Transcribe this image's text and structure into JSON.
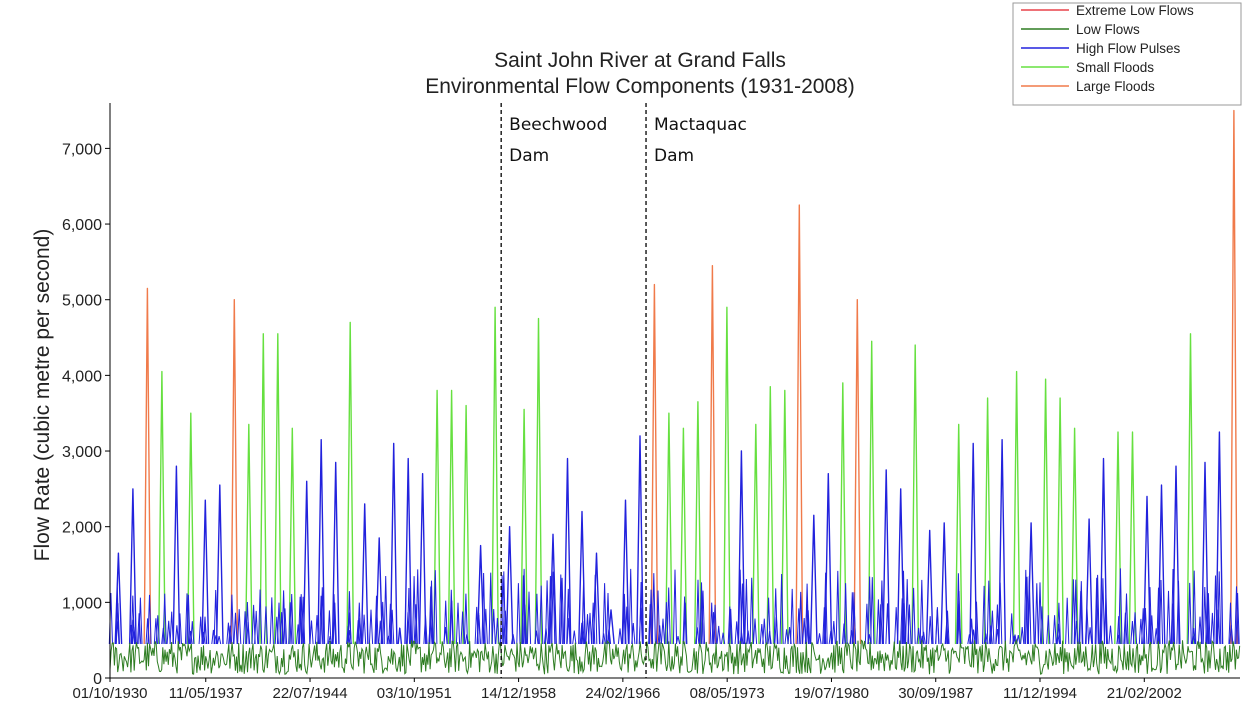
{
  "chart_data": {
    "type": "line",
    "title": [
      "Saint John River at Grand Falls",
      "Environmental Flow Components (1931-2008)"
    ],
    "xlabel": "",
    "ylabel": "Flow Rate (cubic metre per second)",
    "ylim": [
      0,
      7600
    ],
    "y_ticks": [
      0,
      1000,
      2000,
      3000,
      4000,
      5000,
      6000,
      7000
    ],
    "y_tick_labels": [
      "0",
      "1,000",
      "2,000",
      "3,000",
      "4,000",
      "5,000",
      "6,000",
      "7,000"
    ],
    "x_range": [
      "1930-10-01",
      "2008-09-30"
    ],
    "x_ticks": [
      {
        "label": "01/10/1930",
        "date": "1930-10-01"
      },
      {
        "label": "11/05/1937",
        "date": "1937-05-11"
      },
      {
        "label": "22/07/1944",
        "date": "1944-07-22"
      },
      {
        "label": "03/10/1951",
        "date": "1951-10-03"
      },
      {
        "label": "14/12/1958",
        "date": "1958-12-14"
      },
      {
        "label": "24/02/1966",
        "date": "1966-02-24"
      },
      {
        "label": "08/05/1973",
        "date": "1973-05-08"
      },
      {
        "label": "19/07/1980",
        "date": "1980-07-19"
      },
      {
        "label": "30/09/1987",
        "date": "1987-09-30"
      },
      {
        "label": "11/12/1994",
        "date": "1994-12-11"
      },
      {
        "label": "21/02/2002",
        "date": "2002-02-21"
      }
    ],
    "grid": false,
    "legend_position": "top-right",
    "series": [
      {
        "name": "Extreme Low Flows",
        "color": "#e8424a"
      },
      {
        "name": "Low Flows",
        "color": "#2e7d22"
      },
      {
        "name": "High Flow Pulses",
        "color": "#2222dd"
      },
      {
        "name": "Small Floods",
        "color": "#66e040"
      },
      {
        "name": "Large Floods",
        "color": "#f07a4a"
      }
    ],
    "annual_peaks": [
      {
        "year": 1931,
        "flow": 1650,
        "class": "High Flow Pulses"
      },
      {
        "year": 1932,
        "flow": 2500,
        "class": "High Flow Pulses"
      },
      {
        "year": 1933,
        "flow": 5150,
        "class": "Large Floods"
      },
      {
        "year": 1934,
        "flow": 4050,
        "class": "Small Floods"
      },
      {
        "year": 1935,
        "flow": 2800,
        "class": "High Flow Pulses"
      },
      {
        "year": 1936,
        "flow": 3500,
        "class": "Small Floods"
      },
      {
        "year": 1937,
        "flow": 2350,
        "class": "High Flow Pulses"
      },
      {
        "year": 1938,
        "flow": 2550,
        "class": "High Flow Pulses"
      },
      {
        "year": 1939,
        "flow": 5000,
        "class": "Large Floods"
      },
      {
        "year": 1940,
        "flow": 3350,
        "class": "Small Floods"
      },
      {
        "year": 1941,
        "flow": 4550,
        "class": "Small Floods"
      },
      {
        "year": 1942,
        "flow": 4550,
        "class": "Small Floods"
      },
      {
        "year": 1943,
        "flow": 3300,
        "class": "Small Floods"
      },
      {
        "year": 1944,
        "flow": 2600,
        "class": "High Flow Pulses"
      },
      {
        "year": 1945,
        "flow": 3150,
        "class": "High Flow Pulses"
      },
      {
        "year": 1946,
        "flow": 2850,
        "class": "High Flow Pulses"
      },
      {
        "year": 1947,
        "flow": 4700,
        "class": "Small Floods"
      },
      {
        "year": 1948,
        "flow": 2300,
        "class": "High Flow Pulses"
      },
      {
        "year": 1949,
        "flow": 1850,
        "class": "High Flow Pulses"
      },
      {
        "year": 1950,
        "flow": 3100,
        "class": "High Flow Pulses"
      },
      {
        "year": 1951,
        "flow": 2900,
        "class": "High Flow Pulses"
      },
      {
        "year": 1952,
        "flow": 2700,
        "class": "High Flow Pulses"
      },
      {
        "year": 1953,
        "flow": 3800,
        "class": "Small Floods"
      },
      {
        "year": 1954,
        "flow": 3800,
        "class": "Small Floods"
      },
      {
        "year": 1955,
        "flow": 3600,
        "class": "Small Floods"
      },
      {
        "year": 1956,
        "flow": 1750,
        "class": "High Flow Pulses"
      },
      {
        "year": 1957,
        "flow": 4900,
        "class": "Small Floods"
      },
      {
        "year": 1958,
        "flow": 2000,
        "class": "High Flow Pulses"
      },
      {
        "year": 1959,
        "flow": 3550,
        "class": "Small Floods"
      },
      {
        "year": 1960,
        "flow": 4750,
        "class": "Small Floods"
      },
      {
        "year": 1961,
        "flow": 1900,
        "class": "High Flow Pulses"
      },
      {
        "year": 1962,
        "flow": 2900,
        "class": "High Flow Pulses"
      },
      {
        "year": 1963,
        "flow": 2200,
        "class": "High Flow Pulses"
      },
      {
        "year": 1964,
        "flow": 1650,
        "class": "High Flow Pulses"
      },
      {
        "year": 1965,
        "flow": 900,
        "class": "High Flow Pulses"
      },
      {
        "year": 1966,
        "flow": 2350,
        "class": "High Flow Pulses"
      },
      {
        "year": 1967,
        "flow": 3200,
        "class": "High Flow Pulses"
      },
      {
        "year": 1968,
        "flow": 5200,
        "class": "Large Floods"
      },
      {
        "year": 1969,
        "flow": 3500,
        "class": "Small Floods"
      },
      {
        "year": 1970,
        "flow": 3300,
        "class": "Small Floods"
      },
      {
        "year": 1971,
        "flow": 3650,
        "class": "Small Floods"
      },
      {
        "year": 1972,
        "flow": 5450,
        "class": "Large Floods"
      },
      {
        "year": 1973,
        "flow": 4900,
        "class": "Small Floods"
      },
      {
        "year": 1974,
        "flow": 3000,
        "class": "High Flow Pulses"
      },
      {
        "year": 1975,
        "flow": 3350,
        "class": "Small Floods"
      },
      {
        "year": 1976,
        "flow": 3850,
        "class": "Small Floods"
      },
      {
        "year": 1977,
        "flow": 3800,
        "class": "Small Floods"
      },
      {
        "year": 1978,
        "flow": 6250,
        "class": "Large Floods"
      },
      {
        "year": 1979,
        "flow": 2150,
        "class": "High Flow Pulses"
      },
      {
        "year": 1980,
        "flow": 2700,
        "class": "High Flow Pulses"
      },
      {
        "year": 1981,
        "flow": 3900,
        "class": "Small Floods"
      },
      {
        "year": 1982,
        "flow": 5000,
        "class": "Large Floods"
      },
      {
        "year": 1983,
        "flow": 4450,
        "class": "Small Floods"
      },
      {
        "year": 1984,
        "flow": 2750,
        "class": "High Flow Pulses"
      },
      {
        "year": 1985,
        "flow": 2500,
        "class": "High Flow Pulses"
      },
      {
        "year": 1986,
        "flow": 4400,
        "class": "Small Floods"
      },
      {
        "year": 1987,
        "flow": 1950,
        "class": "High Flow Pulses"
      },
      {
        "year": 1988,
        "flow": 2050,
        "class": "High Flow Pulses"
      },
      {
        "year": 1989,
        "flow": 3350,
        "class": "Small Floods"
      },
      {
        "year": 1990,
        "flow": 3100,
        "class": "High Flow Pulses"
      },
      {
        "year": 1991,
        "flow": 3700,
        "class": "Small Floods"
      },
      {
        "year": 1992,
        "flow": 3150,
        "class": "High Flow Pulses"
      },
      {
        "year": 1993,
        "flow": 4050,
        "class": "Small Floods"
      },
      {
        "year": 1994,
        "flow": 2050,
        "class": "High Flow Pulses"
      },
      {
        "year": 1995,
        "flow": 3950,
        "class": "Small Floods"
      },
      {
        "year": 1996,
        "flow": 3700,
        "class": "Small Floods"
      },
      {
        "year": 1997,
        "flow": 3300,
        "class": "Small Floods"
      },
      {
        "year": 1998,
        "flow": 2100,
        "class": "High Flow Pulses"
      },
      {
        "year": 1999,
        "flow": 2900,
        "class": "High Flow Pulses"
      },
      {
        "year": 2000,
        "flow": 3250,
        "class": "Small Floods"
      },
      {
        "year": 2001,
        "flow": 3250,
        "class": "Small Floods"
      },
      {
        "year": 2002,
        "flow": 2400,
        "class": "High Flow Pulses"
      },
      {
        "year": 2003,
        "flow": 2550,
        "class": "High Flow Pulses"
      },
      {
        "year": 2004,
        "flow": 2800,
        "class": "High Flow Pulses"
      },
      {
        "year": 2005,
        "flow": 4550,
        "class": "Small Floods"
      },
      {
        "year": 2006,
        "flow": 2850,
        "class": "High Flow Pulses"
      },
      {
        "year": 2007,
        "flow": 3250,
        "class": "High Flow Pulses"
      },
      {
        "year": 2008,
        "flow": 7500,
        "class": "Large Floods"
      }
    ],
    "base_flow_range": [
      50,
      500
    ],
    "annotations": [
      {
        "label_lines": [
          "Beechwood",
          "Dam"
        ],
        "date": "1957-10-01",
        "style": "dashed vertical line"
      },
      {
        "label_lines": [
          "Mactaquac",
          "Dam"
        ],
        "date": "1967-10-01",
        "style": "dashed vertical line"
      }
    ]
  }
}
